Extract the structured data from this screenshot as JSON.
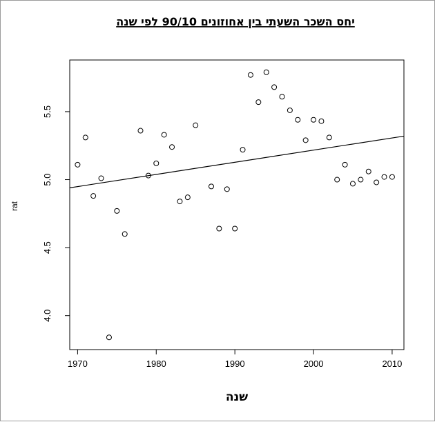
{
  "chart_data": {
    "type": "scatter",
    "title": "יחס השכר השעתי בין אחוזונים 90/10 לפי שנה",
    "xlabel": "שנה",
    "ylabel": "rat",
    "xlim": [
      1969,
      2011.5
    ],
    "ylim": [
      3.75,
      5.88
    ],
    "x_ticks": [
      1970,
      1980,
      1990,
      2000,
      2010
    ],
    "y_ticks": [
      4.0,
      4.5,
      5.0,
      5.5
    ],
    "y_tick_labels": [
      "4.0",
      "4.5",
      "5.0",
      "5.5"
    ],
    "grid": false,
    "series": [
      {
        "x": [
          1970,
          1971,
          1972,
          1973,
          1974,
          1975,
          1976,
          1978,
          1979,
          1980,
          1981,
          1982,
          1983,
          1984,
          1985,
          1987,
          1988,
          1989,
          1990,
          1991,
          1992,
          1993,
          1994,
          1995,
          1996,
          1997,
          1998,
          1999,
          2000,
          2001,
          2002,
          2003,
          2004,
          2005,
          2006,
          2007,
          2008,
          2009,
          2010
        ],
        "y": [
          5.11,
          5.31,
          4.88,
          5.01,
          3.84,
          4.77,
          4.6,
          5.36,
          5.03,
          5.12,
          5.33,
          5.24,
          4.84,
          4.87,
          5.4,
          4.95,
          4.64,
          4.93,
          4.64,
          5.22,
          5.77,
          5.57,
          5.79,
          5.68,
          5.61,
          5.51,
          5.44,
          5.29,
          5.44,
          5.43,
          5.31,
          5.0,
          5.11,
          4.97,
          5.0,
          5.06,
          4.98,
          5.02,
          5.02
        ]
      }
    ],
    "regression_line": {
      "x": [
        1969,
        2011.5
      ],
      "y": [
        4.94,
        5.32
      ]
    }
  }
}
